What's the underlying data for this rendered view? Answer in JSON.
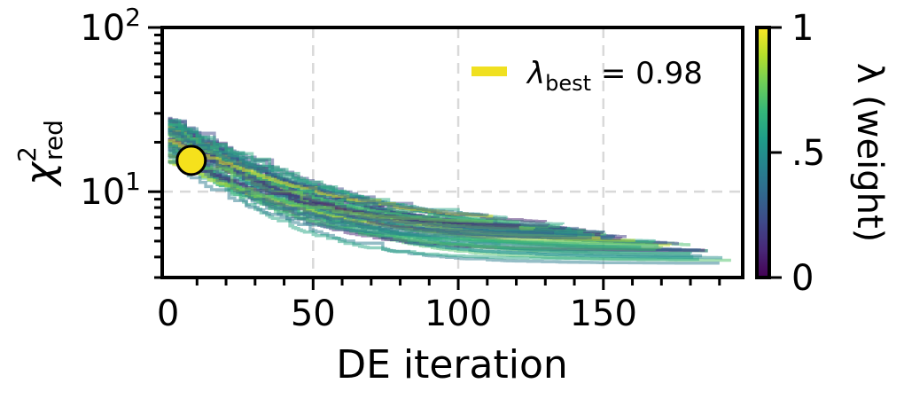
{
  "chart_data": {
    "type": "line",
    "title": "",
    "xlabel": "DE iteration",
    "ylabel": {
      "main": "χ",
      "sup": "2",
      "sub": "red"
    },
    "xlim": [
      -2,
      198
    ],
    "ylim": [
      3,
      100
    ],
    "yscale": "log",
    "x_ticks": [
      {
        "value": 0,
        "label": "0"
      },
      {
        "value": 50,
        "label": "50"
      },
      {
        "value": 100,
        "label": "100"
      },
      {
        "value": 150,
        "label": "150"
      }
    ],
    "y_ticks": [
      {
        "value": 10,
        "base": "10",
        "exp": "1"
      },
      {
        "value": 100,
        "base": "10",
        "exp": "2"
      }
    ],
    "grid": true,
    "colormap": "viridis",
    "colors": {
      "viridis": [
        "#440154",
        "#482878",
        "#3e4989",
        "#31688e",
        "#26828e",
        "#1f9e89",
        "#35b779",
        "#6ece58",
        "#b5de2b",
        "#fde725"
      ],
      "best_marker": "#f5e11c",
      "legend_swatch": "#f0e020"
    },
    "best_point": {
      "x": 8,
      "y": 15.5
    },
    "legend": {
      "placement": "top-right",
      "symbol": "λ",
      "sub": "best",
      "text": " = 0.98"
    },
    "colorbar": {
      "label": "λ (weight)",
      "range": [
        0,
        1
      ],
      "ticks": [
        {
          "value": 0,
          "label": "0"
        },
        {
          "value": 0.5,
          "label": ".5"
        },
        {
          "value": 1,
          "label": "1"
        }
      ]
    },
    "series_summary": {
      "description": "multiple DE runs, each a monotonically decreasing step curve",
      "count": 60,
      "start_range": [
        15,
        28
      ],
      "end_range": [
        3.8,
        6.5
      ],
      "length_range": [
        110,
        195
      ]
    }
  }
}
